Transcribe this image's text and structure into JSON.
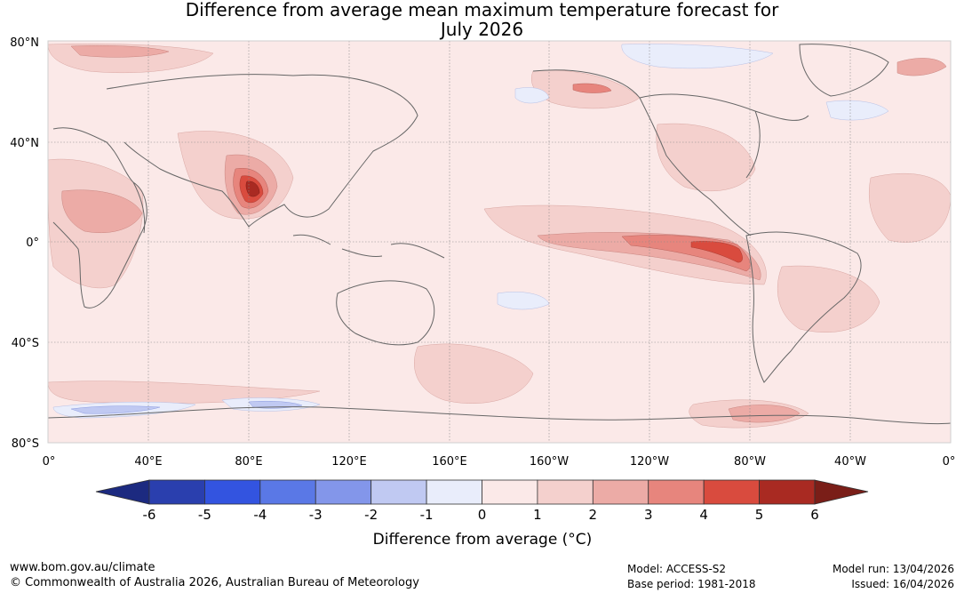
{
  "title": {
    "line1": "Difference from average mean maximum temperature forecast for",
    "line2": "July 2026"
  },
  "map": {
    "lat_labels": [
      "80°N",
      "40°N",
      "0°",
      "40°S",
      "80°S"
    ],
    "lon_labels": [
      "0°",
      "40°E",
      "80°E",
      "120°E",
      "160°E",
      "160°W",
      "120°W",
      "80°W",
      "40°W",
      "0°"
    ]
  },
  "colorbar": {
    "ticks": [
      "-6",
      "-5",
      "-4",
      "-3",
      "-2",
      "-1",
      "0",
      "1",
      "2",
      "3",
      "4",
      "5",
      "6"
    ],
    "label": "Difference from average (°C)",
    "colors": [
      "#2a3fae",
      "#3354e0",
      "#5a78e6",
      "#8396ea",
      "#c0c9f2",
      "#e9edfb",
      "#fbe9e8",
      "#f4d0cd",
      "#ecaba6",
      "#e7857d",
      "#d94b3e",
      "#a92a22"
    ],
    "low_extend_color": "#1c2a80",
    "high_extend_color": "#7a1e18"
  },
  "footer": {
    "url": "www.bom.gov.au/climate",
    "copyright": "© Commonwealth of Australia 2026, Australian Bureau of Meteorology",
    "model": "Model: ACCESS-S2",
    "base_period": "Base period: 1981-2018",
    "model_run": "Model run: 13/04/2026",
    "issued": "Issued: 16/04/2026"
  }
}
